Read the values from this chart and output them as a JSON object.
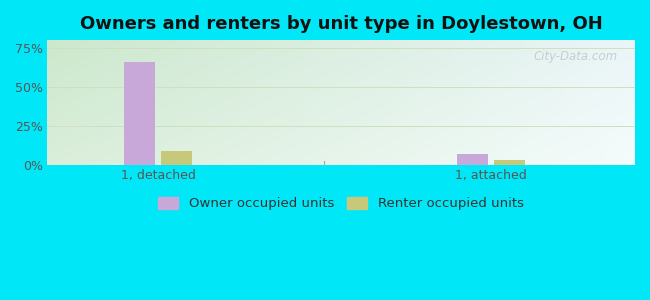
{
  "title": "Owners and renters by unit type in Doylestown, OH",
  "categories": [
    "1, detached",
    "1, attached"
  ],
  "owner_values": [
    66.0,
    7.0
  ],
  "renter_values": [
    9.0,
    3.0
  ],
  "owner_color": "#c8a8d8",
  "renter_color": "#c8c87a",
  "bar_width": 0.28,
  "ylim": [
    0,
    80
  ],
  "yticks": [
    0,
    25,
    50,
    75
  ],
  "yticklabels": [
    "0%",
    "25%",
    "50%",
    "75%"
  ],
  "outer_bg": "#00e8f8",
  "title_fontsize": 13,
  "legend_fontsize": 9.5,
  "tick_fontsize": 9,
  "watermark": "City-Data.com",
  "grid_color": "#d0dfc0",
  "grad_color_tl": "#d8edd8",
  "grad_color_br": "#f0f8f0",
  "group_positions": [
    1.5,
    4.5
  ],
  "xlim": [
    0.5,
    5.8
  ]
}
